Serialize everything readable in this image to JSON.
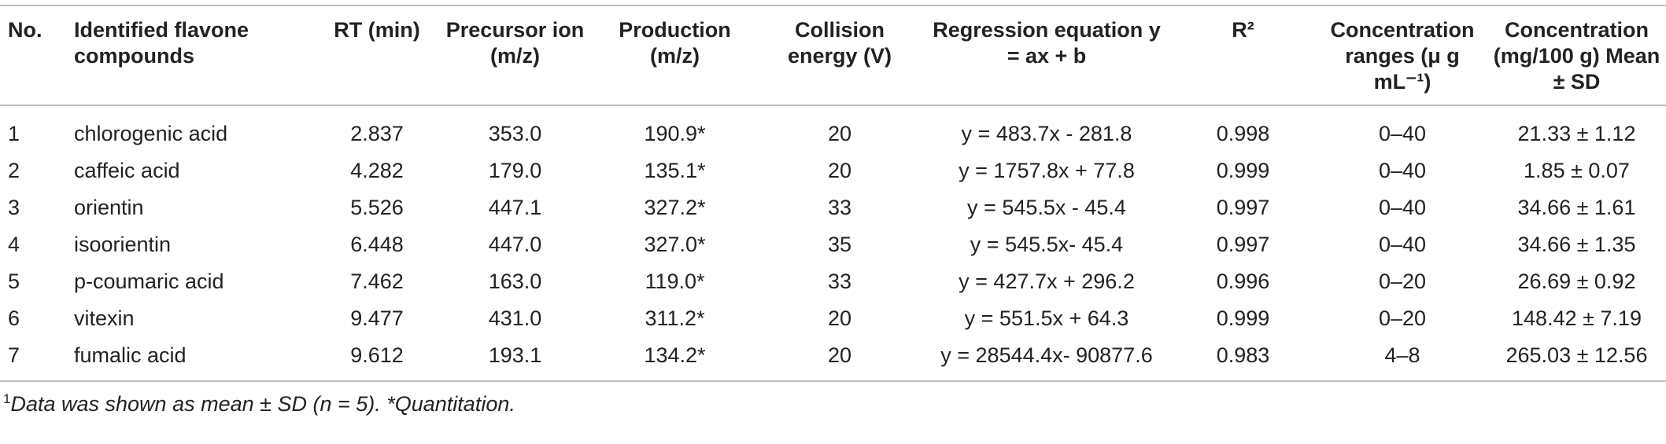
{
  "table": {
    "columns": [
      "No.",
      "Identified flavone compounds",
      "RT (min)",
      "Precursor ion (m/z)",
      "Production (m/z)",
      "Collision energy (V)",
      "Regression equation y = ax + b",
      "R²",
      "Concentration ranges (μ g mL⁻¹)",
      "Concentration (mg/100 g) Mean ± SD"
    ],
    "rows": [
      [
        "1",
        "chlorogenic acid",
        "2.837",
        "353.0",
        "190.9*",
        "20",
        "y = 483.7x - 281.8",
        "0.998",
        "0–40",
        "21.33 ± 1.12"
      ],
      [
        "2",
        "caffeic acid",
        "4.282",
        "179.0",
        "135.1*",
        "20",
        "y = 1757.8x + 77.8",
        "0.999",
        "0–40",
        "1.85 ± 0.07"
      ],
      [
        "3",
        "orientin",
        "5.526",
        "447.1",
        "327.2*",
        "33",
        "y = 545.5x - 45.4",
        "0.997",
        "0–40",
        "34.66 ± 1.61"
      ],
      [
        "4",
        "isoorientin",
        "6.448",
        "447.0",
        "327.0*",
        "35",
        "y = 545.5x- 45.4",
        "0.997",
        "0–40",
        "34.66 ± 1.35"
      ],
      [
        "5",
        "p-coumaric acid",
        "7.462",
        "163.0",
        "119.0*",
        "33",
        "y = 427.7x + 296.2",
        "0.996",
        "0–20",
        "26.69 ± 0.92"
      ],
      [
        "6",
        "vitexin",
        "9.477",
        "431.0",
        "311.2*",
        "20",
        "y = 551.5x + 64.3",
        "0.999",
        "0–20",
        "148.42 ± 7.19"
      ],
      [
        "7",
        "fumalic acid",
        "9.612",
        "193.1",
        "134.2*",
        "20",
        "y = 28544.4x- 90877.6",
        "0.983",
        "4–8",
        "265.03 ± 12.56"
      ]
    ]
  },
  "footnote": {
    "marker": "1",
    "text": "Data was shown as mean ± SD (n = 5). *Quantitation."
  }
}
